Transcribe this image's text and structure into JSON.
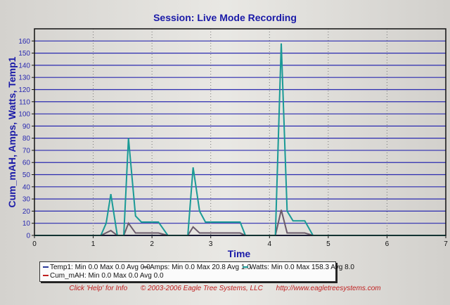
{
  "chart_data": {
    "type": "line",
    "title": "Session: Live Mode Recording",
    "xlabel": "Time",
    "ylabel": "Cum_mAH, Amps, Watts, Temp1",
    "xlim": [
      0,
      7
    ],
    "ylim": [
      0,
      170
    ],
    "xticks": [
      0,
      1,
      2,
      3,
      4,
      5,
      6,
      7
    ],
    "yticks": [
      0,
      10,
      20,
      30,
      40,
      50,
      60,
      70,
      80,
      90,
      100,
      110,
      120,
      130,
      140,
      150,
      160
    ],
    "grid": true,
    "series": [
      {
        "name": "Watts",
        "color": "#1a9a96",
        "x": [
          0,
          1.13,
          1.22,
          1.3,
          1.41,
          1.52,
          1.6,
          1.72,
          1.82,
          2.11,
          2.27,
          2.61,
          2.7,
          2.81,
          2.91,
          3.5,
          3.59,
          4.1,
          4.2,
          4.3,
          4.4,
          4.6,
          4.74,
          7
        ],
        "y": [
          0,
          0,
          10,
          34,
          0,
          0,
          80,
          16,
          11,
          11,
          0,
          0,
          56,
          20,
          11,
          11,
          0,
          0,
          158,
          20,
          12,
          12,
          0,
          0
        ]
      },
      {
        "name": "Amps",
        "color": "#6a5a6a",
        "x": [
          0,
          1.13,
          1.3,
          1.41,
          1.52,
          1.6,
          1.72,
          2.11,
          2.27,
          2.61,
          2.7,
          2.81,
          3.5,
          3.59,
          4.1,
          4.2,
          4.3,
          4.6,
          4.74,
          7
        ],
        "y": [
          0,
          0,
          4,
          0,
          0,
          10,
          2,
          2,
          0,
          0,
          7,
          2,
          2,
          0,
          0,
          21,
          2,
          2,
          0,
          0
        ]
      },
      {
        "name": "Temp1",
        "color": "#2a3a9a",
        "x": [
          0,
          7
        ],
        "y": [
          0,
          0
        ]
      },
      {
        "name": "Cum_mAH",
        "color": "#a02020",
        "x": [
          0,
          7
        ],
        "y": [
          0,
          0
        ]
      }
    ],
    "legend": {
      "placement": "bottom",
      "items": [
        {
          "label": "Temp1:  Min 0.0 Max 0.0 Avg 0.0",
          "color": "#2a3a9a"
        },
        {
          "label": "Amps:  Min 0.0 Max 20.8 Avg 1.0",
          "color": "#555555"
        },
        {
          "label": "Watts:  Min 0.0 Max 158.3 Avg 8.0",
          "color": "#1a9a96"
        },
        {
          "label": "Cum_mAH:  Min 0.0 Max 0.0 Avg 0.0",
          "color": "#c02020"
        }
      ]
    }
  },
  "footer": {
    "help": "Click 'Help' for Info",
    "copyright": "© 2003-2006 Eagle Tree Systems, LLC",
    "url": "http://www.eagletreesystems.com"
  }
}
